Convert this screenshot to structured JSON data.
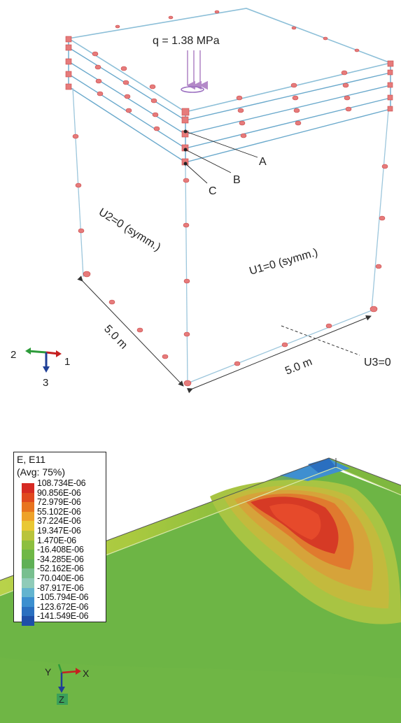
{
  "top_figure": {
    "load_label": "q = 1.38 MPa",
    "points": [
      "A",
      "B",
      "C"
    ],
    "boundary_conditions": {
      "left_face": "U2=0 (symm.)",
      "right_face": "U1=0 (symm.)",
      "bottom": "U3=0"
    },
    "dimensions": {
      "left_edge": "5.0 m",
      "right_edge": "5.0 m"
    },
    "axis_triad": {
      "axis_1": "1",
      "axis_2": "2",
      "axis_3": "3"
    }
  },
  "bottom_figure": {
    "legend": {
      "title_line1": "E, E11",
      "title_line2": "(Avg: 75%)",
      "entries": [
        {
          "value": "108.734E-06",
          "color": "#d62a23"
        },
        {
          "value": "90.856E-06",
          "color": "#e0491f"
        },
        {
          "value": "72.979E-06",
          "color": "#e8741f"
        },
        {
          "value": "55.102E-06",
          "color": "#eea22a"
        },
        {
          "value": "37.224E-06",
          "color": "#e9c834"
        },
        {
          "value": "19.347E-06",
          "color": "#b9c43b"
        },
        {
          "value": "1.470E-06",
          "color": "#8dbf3f"
        },
        {
          "value": "-16.408E-06",
          "color": "#6fb846"
        },
        {
          "value": "-34.285E-06",
          "color": "#5fb056"
        },
        {
          "value": "-52.162E-06",
          "color": "#78bf8f"
        },
        {
          "value": "-70.040E-06",
          "color": "#8fcbb8"
        },
        {
          "value": "-87.917E-06",
          "color": "#63b4cf"
        },
        {
          "value": "-105.794E-06",
          "color": "#3c8fcf"
        },
        {
          "value": "-123.672E-06",
          "color": "#2a6fc0"
        },
        {
          "value": "-141.549E-06",
          "color": "#1e4fa8"
        }
      ]
    },
    "axis_triad": {
      "axis_x": "X",
      "axis_y": "Y",
      "axis_z": "Z"
    }
  }
}
